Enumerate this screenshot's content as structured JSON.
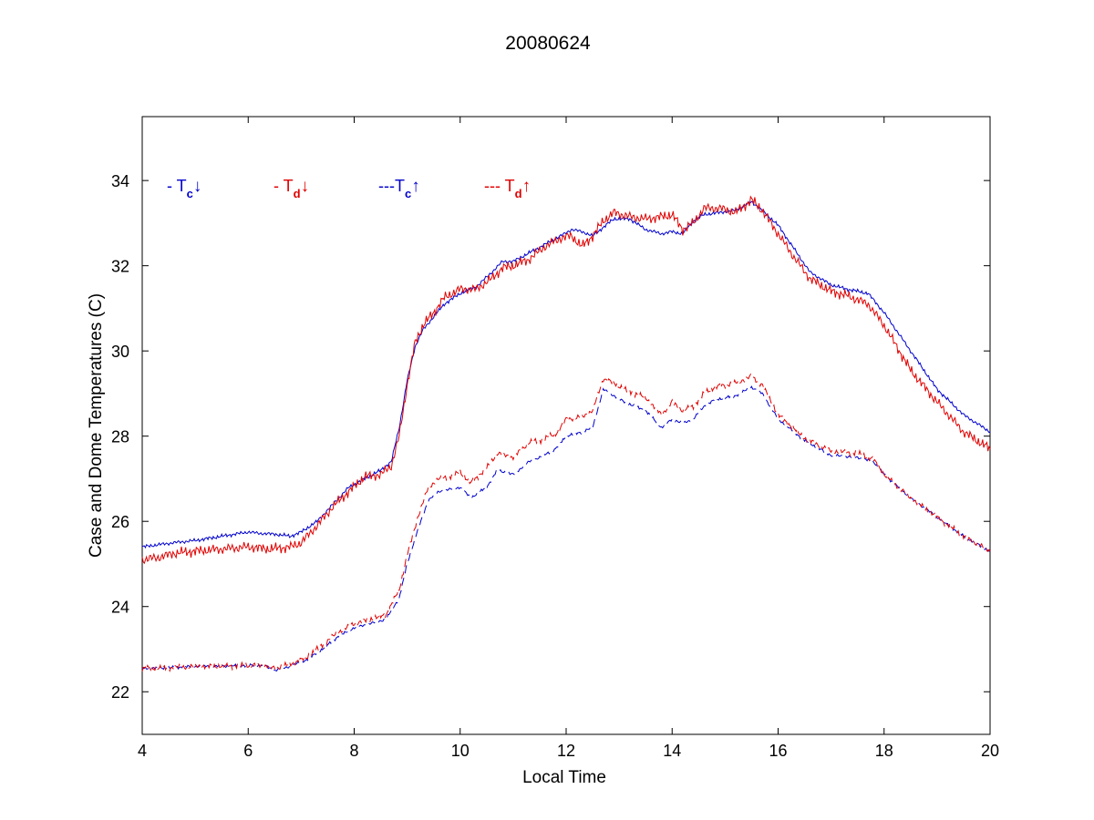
{
  "chart_data": {
    "type": "line",
    "title": "20080624",
    "xlabel": "Local Time",
    "ylabel": "Case and Dome Temperatures (C)",
    "xlim": [
      4,
      20
    ],
    "ylim": [
      21,
      35.5
    ],
    "xticks": [
      4,
      6,
      8,
      10,
      12,
      14,
      16,
      18,
      20
    ],
    "yticks": [
      22,
      24,
      26,
      28,
      30,
      32,
      34
    ],
    "grid": false,
    "legend_position": "top-left, inside plot",
    "colors": {
      "blue": "#0000cc",
      "red": "#e00000"
    },
    "legend": [
      {
        "prefix": "- ",
        "symbol": "T",
        "sub": "c",
        "arrow": "↓",
        "series": 0
      },
      {
        "prefix": "- ",
        "symbol": "T",
        "sub": "d",
        "arrow": "↓",
        "series": 1
      },
      {
        "prefix": "---",
        "symbol": "T",
        "sub": "c",
        "arrow": "↑",
        "series": 2
      },
      {
        "prefix": "--- ",
        "symbol": "T",
        "sub": "d",
        "arrow": "↑",
        "series": 3
      }
    ],
    "series": [
      {
        "color": "#0000cc",
        "style": "solid",
        "points": [
          [
            4.0,
            25.4
          ],
          [
            4.3,
            25.45
          ],
          [
            4.6,
            25.5
          ],
          [
            5.0,
            25.55
          ],
          [
            5.5,
            25.65
          ],
          [
            6.0,
            25.75
          ],
          [
            6.2,
            25.72
          ],
          [
            6.5,
            25.7
          ],
          [
            6.8,
            25.65
          ],
          [
            7.0,
            25.75
          ],
          [
            7.3,
            26.0
          ],
          [
            7.6,
            26.4
          ],
          [
            7.9,
            26.8
          ],
          [
            8.2,
            27.0
          ],
          [
            8.5,
            27.2
          ],
          [
            8.7,
            27.4
          ],
          [
            8.85,
            28.2
          ],
          [
            9.0,
            29.3
          ],
          [
            9.15,
            30.1
          ],
          [
            9.3,
            30.5
          ],
          [
            9.5,
            30.8
          ],
          [
            9.7,
            31.1
          ],
          [
            10.0,
            31.35
          ],
          [
            10.3,
            31.5
          ],
          [
            10.6,
            31.85
          ],
          [
            10.8,
            32.1
          ],
          [
            11.0,
            32.1
          ],
          [
            11.3,
            32.3
          ],
          [
            11.6,
            32.5
          ],
          [
            11.9,
            32.7
          ],
          [
            12.1,
            32.85
          ],
          [
            12.3,
            32.8
          ],
          [
            12.5,
            32.7
          ],
          [
            12.7,
            32.9
          ],
          [
            12.9,
            33.1
          ],
          [
            13.2,
            33.1
          ],
          [
            13.5,
            32.85
          ],
          [
            13.8,
            32.75
          ],
          [
            14.0,
            32.8
          ],
          [
            14.2,
            32.75
          ],
          [
            14.4,
            33.05
          ],
          [
            14.6,
            33.2
          ],
          [
            14.9,
            33.25
          ],
          [
            15.2,
            33.3
          ],
          [
            15.5,
            33.5
          ],
          [
            15.7,
            33.3
          ],
          [
            16.0,
            32.95
          ],
          [
            16.3,
            32.4
          ],
          [
            16.6,
            31.85
          ],
          [
            17.0,
            31.55
          ],
          [
            17.3,
            31.45
          ],
          [
            17.7,
            31.35
          ],
          [
            18.0,
            30.9
          ],
          [
            18.5,
            30.0
          ],
          [
            19.0,
            29.1
          ],
          [
            19.5,
            28.5
          ],
          [
            20.0,
            28.1
          ]
        ]
      },
      {
        "color": "#e00000",
        "style": "solid",
        "points": [
          [
            4.0,
            25.1
          ],
          [
            4.3,
            25.15
          ],
          [
            4.6,
            25.25
          ],
          [
            5.0,
            25.3
          ],
          [
            5.5,
            25.35
          ],
          [
            6.0,
            25.4
          ],
          [
            6.4,
            25.35
          ],
          [
            6.8,
            25.4
          ],
          [
            7.0,
            25.5
          ],
          [
            7.3,
            25.9
          ],
          [
            7.6,
            26.35
          ],
          [
            7.9,
            26.7
          ],
          [
            8.2,
            27.05
          ],
          [
            8.5,
            27.1
          ],
          [
            8.7,
            27.3
          ],
          [
            8.85,
            28.0
          ],
          [
            9.0,
            29.2
          ],
          [
            9.15,
            30.2
          ],
          [
            9.3,
            30.6
          ],
          [
            9.5,
            30.9
          ],
          [
            9.7,
            31.25
          ],
          [
            10.0,
            31.45
          ],
          [
            10.3,
            31.45
          ],
          [
            10.6,
            31.7
          ],
          [
            10.8,
            31.95
          ],
          [
            11.0,
            32.0
          ],
          [
            11.3,
            32.15
          ],
          [
            11.6,
            32.45
          ],
          [
            11.9,
            32.65
          ],
          [
            12.1,
            32.7
          ],
          [
            12.3,
            32.45
          ],
          [
            12.5,
            32.7
          ],
          [
            12.7,
            33.05
          ],
          [
            12.9,
            33.25
          ],
          [
            13.2,
            33.15
          ],
          [
            13.5,
            33.1
          ],
          [
            13.8,
            33.15
          ],
          [
            14.0,
            33.2
          ],
          [
            14.2,
            32.85
          ],
          [
            14.4,
            33.0
          ],
          [
            14.6,
            33.35
          ],
          [
            14.9,
            33.35
          ],
          [
            15.2,
            33.25
          ],
          [
            15.5,
            33.55
          ],
          [
            15.7,
            33.3
          ],
          [
            16.0,
            32.75
          ],
          [
            16.3,
            32.2
          ],
          [
            16.6,
            31.7
          ],
          [
            17.0,
            31.4
          ],
          [
            17.3,
            31.3
          ],
          [
            17.7,
            31.1
          ],
          [
            18.0,
            30.6
          ],
          [
            18.5,
            29.55
          ],
          [
            19.0,
            28.8
          ],
          [
            19.5,
            28.1
          ],
          [
            20.0,
            27.7
          ]
        ]
      },
      {
        "color": "#0000cc",
        "style": "dashed",
        "points": [
          [
            4.0,
            22.55
          ],
          [
            4.5,
            22.56
          ],
          [
            5.0,
            22.6
          ],
          [
            5.5,
            22.6
          ],
          [
            6.0,
            22.62
          ],
          [
            6.3,
            22.62
          ],
          [
            6.5,
            22.5
          ],
          [
            6.8,
            22.6
          ],
          [
            7.1,
            22.75
          ],
          [
            7.4,
            23.0
          ],
          [
            7.7,
            23.3
          ],
          [
            8.0,
            23.5
          ],
          [
            8.3,
            23.6
          ],
          [
            8.6,
            23.7
          ],
          [
            8.85,
            24.2
          ],
          [
            9.0,
            25.0
          ],
          [
            9.2,
            25.8
          ],
          [
            9.4,
            26.5
          ],
          [
            9.6,
            26.7
          ],
          [
            9.8,
            26.75
          ],
          [
            10.0,
            26.8
          ],
          [
            10.2,
            26.55
          ],
          [
            10.5,
            26.8
          ],
          [
            10.7,
            27.2
          ],
          [
            11.0,
            27.1
          ],
          [
            11.3,
            27.4
          ],
          [
            11.5,
            27.5
          ],
          [
            11.8,
            27.7
          ],
          [
            12.0,
            28.0
          ],
          [
            12.3,
            28.1
          ],
          [
            12.5,
            28.2
          ],
          [
            12.7,
            29.1
          ],
          [
            12.9,
            28.95
          ],
          [
            13.1,
            28.8
          ],
          [
            13.3,
            28.7
          ],
          [
            13.5,
            28.6
          ],
          [
            13.8,
            28.2
          ],
          [
            14.0,
            28.4
          ],
          [
            14.2,
            28.3
          ],
          [
            14.4,
            28.4
          ],
          [
            14.6,
            28.7
          ],
          [
            14.8,
            28.85
          ],
          [
            15.0,
            28.9
          ],
          [
            15.2,
            28.95
          ],
          [
            15.5,
            29.15
          ],
          [
            15.7,
            29.0
          ],
          [
            16.0,
            28.4
          ],
          [
            16.5,
            27.9
          ],
          [
            17.0,
            27.55
          ],
          [
            17.5,
            27.5
          ],
          [
            17.8,
            27.4
          ],
          [
            18.0,
            27.1
          ],
          [
            18.5,
            26.55
          ],
          [
            19.0,
            26.1
          ],
          [
            19.5,
            25.65
          ],
          [
            20.0,
            25.3
          ]
        ]
      },
      {
        "color": "#e00000",
        "style": "dashed",
        "points": [
          [
            4.0,
            22.55
          ],
          [
            4.5,
            22.56
          ],
          [
            5.0,
            22.6
          ],
          [
            5.5,
            22.6
          ],
          [
            6.0,
            22.62
          ],
          [
            6.3,
            22.62
          ],
          [
            6.5,
            22.55
          ],
          [
            6.8,
            22.65
          ],
          [
            7.1,
            22.8
          ],
          [
            7.4,
            23.1
          ],
          [
            7.7,
            23.4
          ],
          [
            8.0,
            23.6
          ],
          [
            8.3,
            23.7
          ],
          [
            8.6,
            23.8
          ],
          [
            8.85,
            24.4
          ],
          [
            9.0,
            25.2
          ],
          [
            9.2,
            26.1
          ],
          [
            9.4,
            26.8
          ],
          [
            9.6,
            27.0
          ],
          [
            9.8,
            27.05
          ],
          [
            10.0,
            27.15
          ],
          [
            10.2,
            26.9
          ],
          [
            10.5,
            27.25
          ],
          [
            10.7,
            27.6
          ],
          [
            11.0,
            27.5
          ],
          [
            11.3,
            27.85
          ],
          [
            11.5,
            27.9
          ],
          [
            11.8,
            28.05
          ],
          [
            12.0,
            28.4
          ],
          [
            12.3,
            28.45
          ],
          [
            12.5,
            28.6
          ],
          [
            12.7,
            29.35
          ],
          [
            12.9,
            29.25
          ],
          [
            13.1,
            29.1
          ],
          [
            13.3,
            29.0
          ],
          [
            13.5,
            28.9
          ],
          [
            13.8,
            28.5
          ],
          [
            14.0,
            28.8
          ],
          [
            14.2,
            28.6
          ],
          [
            14.4,
            28.7
          ],
          [
            14.6,
            29.0
          ],
          [
            14.8,
            29.15
          ],
          [
            15.0,
            29.2
          ],
          [
            15.2,
            29.25
          ],
          [
            15.5,
            29.4
          ],
          [
            15.7,
            29.2
          ],
          [
            16.0,
            28.5
          ],
          [
            16.5,
            27.95
          ],
          [
            17.0,
            27.65
          ],
          [
            17.5,
            27.6
          ],
          [
            17.8,
            27.45
          ],
          [
            18.0,
            27.1
          ],
          [
            18.5,
            26.55
          ],
          [
            19.0,
            26.1
          ],
          [
            19.5,
            25.65
          ],
          [
            20.0,
            25.3
          ]
        ]
      }
    ]
  }
}
